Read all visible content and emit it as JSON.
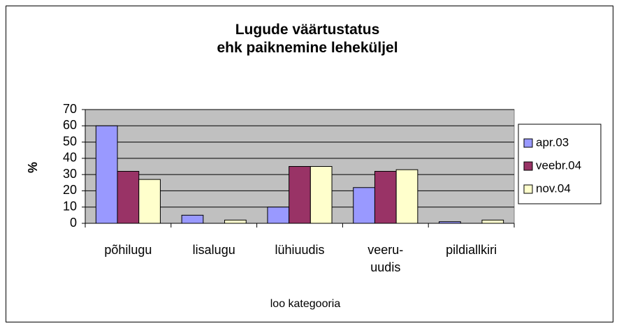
{
  "chart_data": {
    "type": "bar",
    "title": "Lugude väärtustatus\nehk paiknemine leheküljel",
    "x_label": "loo kategooria",
    "y_label": "%",
    "categories": [
      "põhilugu",
      "lisalugu",
      "lühiuudis",
      "veeru-\nuudis",
      "pildiallkiri"
    ],
    "series": [
      {
        "name": "apr.03",
        "color": "#9999ff",
        "values": [
          60,
          5,
          10,
          22,
          1
        ]
      },
      {
        "name": "veebr.04",
        "color": "#993366",
        "values": [
          32,
          0,
          35,
          32,
          0
        ]
      },
      {
        "name": "nov.04",
        "color": "#ffffcc",
        "values": [
          27,
          2,
          35,
          33,
          2
        ]
      }
    ],
    "ylim": [
      0,
      70
    ],
    "yticks": [
      0,
      10,
      20,
      30,
      40,
      50,
      60,
      70
    ],
    "grid": true,
    "legend": "right",
    "plot_background": "#c0c0c0"
  }
}
